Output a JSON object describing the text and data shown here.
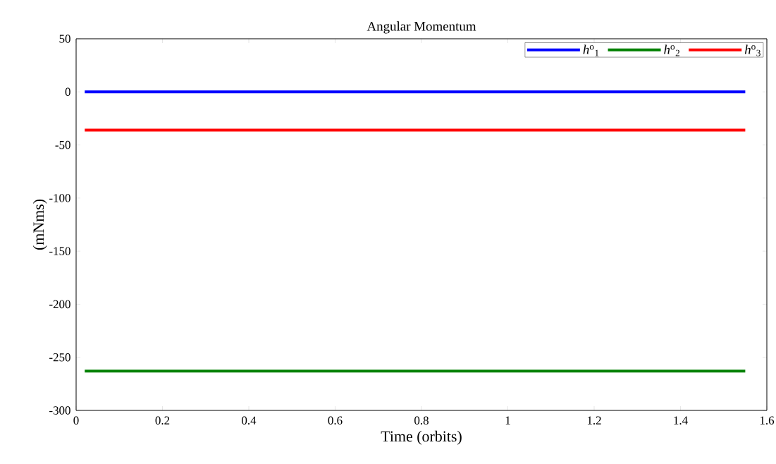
{
  "chart_data": {
    "type": "line",
    "title": "Angular Momentum",
    "xlabel": "Time (orbits)",
    "ylabel": "(mNms)",
    "x": [
      0.02,
      1.55
    ],
    "series": [
      {
        "name": "*h*$^{o}$$_{1}$",
        "color": "#0000ff",
        "values": [
          0,
          0
        ]
      },
      {
        "name": "*h*$^{o}$$_{2}$",
        "color": "#008000",
        "values": [
          -263,
          -263
        ]
      },
      {
        "name": "*h*$^{o}$$_{3}$",
        "color": "#ff0000",
        "values": [
          -36,
          -36
        ]
      }
    ],
    "xlim": [
      0,
      1.6
    ],
    "ylim": [
      -300,
      50
    ],
    "xticks": [
      0,
      0.2,
      0.4,
      0.6,
      0.8,
      1,
      1.2,
      1.4,
      1.6
    ],
    "yticks": [
      -300,
      -250,
      -200,
      -150,
      -100,
      -50,
      0,
      50
    ],
    "grid": false,
    "legend": "top right",
    "marker": "none",
    "line_style": "solid"
  }
}
